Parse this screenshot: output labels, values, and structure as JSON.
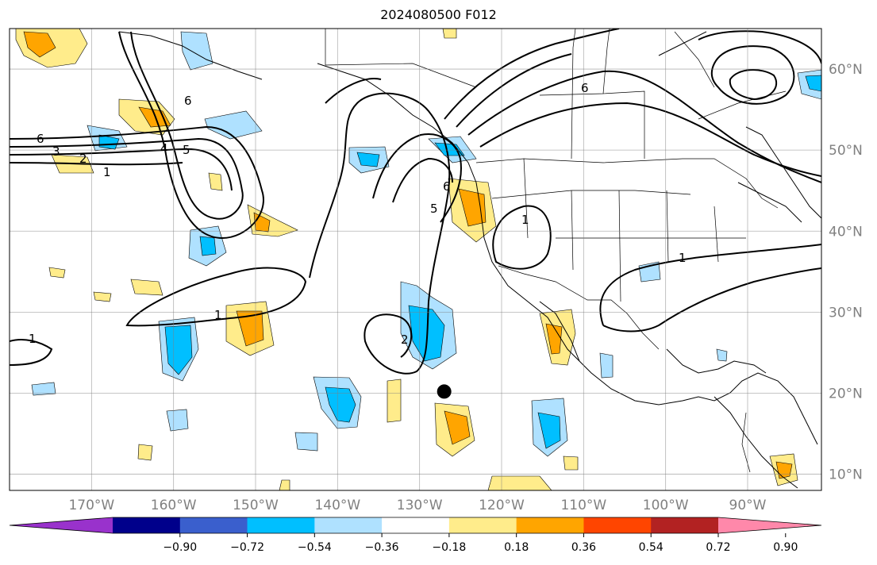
{
  "title": "2024080500 F012",
  "map": {
    "lon_range": [
      -180,
      -81
    ],
    "lat_range": [
      8,
      65
    ],
    "lon_labels": [
      "170°W",
      "160°W",
      "150°W",
      "140°W",
      "130°W",
      "120°W",
      "110°W",
      "100°W",
      "90°W"
    ],
    "lon_values": [
      -170,
      -160,
      -150,
      -140,
      -130,
      -120,
      -110,
      -100,
      -90
    ],
    "lat_labels": [
      "10°N",
      "20°N",
      "30°N",
      "40°N",
      "50°N",
      "60°N"
    ],
    "lat_values": [
      10,
      20,
      30,
      40,
      50,
      60
    ],
    "grid": true,
    "marker": {
      "lon": -127,
      "lat": 20.2,
      "color": "#000000"
    }
  },
  "contour_labels": [
    "1",
    "2",
    "3",
    "4",
    "5",
    "6"
  ],
  "colorbar": {
    "colors": [
      "#9932cc",
      "#00008b",
      "#3a5fcd",
      "#00bfff",
      "#afe1ff",
      "#ffffff",
      "#ffec8b",
      "#ffa500",
      "#ff4500",
      "#b22222",
      "#ff88aa"
    ],
    "ticks": [
      "−0.90",
      "−0.72",
      "−0.54",
      "−0.36",
      "−0.18",
      "0.18",
      "0.36",
      "0.54",
      "0.72",
      "0.90"
    ]
  }
}
